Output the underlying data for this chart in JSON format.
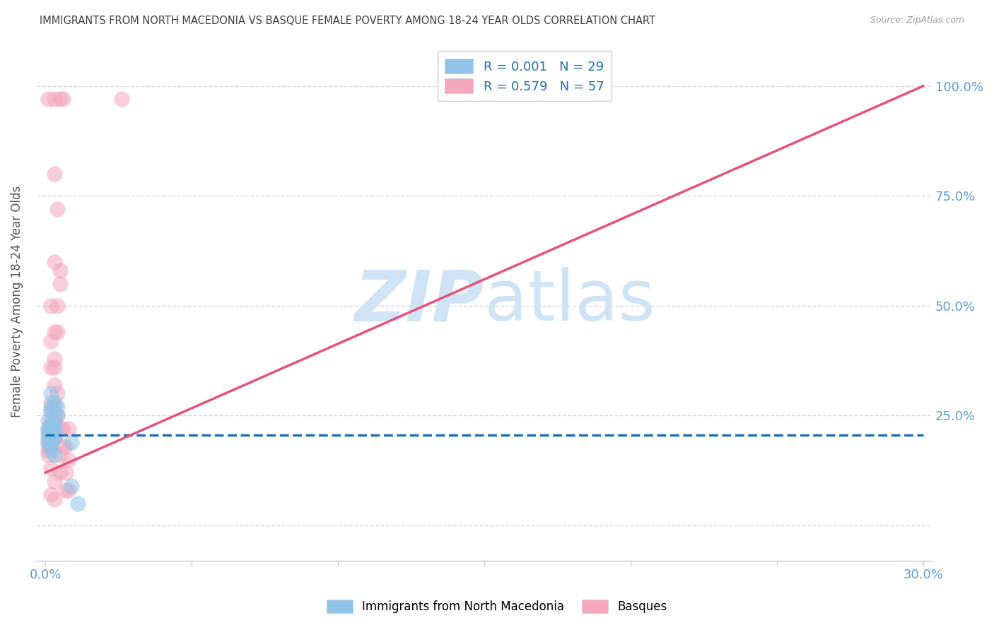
{
  "title": "IMMIGRANTS FROM NORTH MACEDONIA VS BASQUE FEMALE POVERTY AMONG 18-24 YEAR OLDS CORRELATION CHART",
  "source": "Source: ZipAtlas.com",
  "ylabel": "Female Poverty Among 18-24 Year Olds",
  "legend_blue_label": "R = 0.001   N = 29",
  "legend_pink_label": "R = 0.579   N = 57",
  "legend_bottom_blue": "Immigrants from North Macedonia",
  "legend_bottom_pink": "Basques",
  "blue_color": "#8fc4e8",
  "pink_color": "#f4a7bc",
  "blue_line_color": "#2171b5",
  "pink_line_color": "#e8527a",
  "axis_label_color": "#5b9bd5",
  "title_color": "#404040",
  "watermark_zip": "ZIP",
  "watermark_atlas": "atlas",
  "watermark_color": "#d0e4f5",
  "background_color": "#ffffff",
  "grid_color": "#d8d8d8",
  "xlim": [
    0.0,
    0.3
  ],
  "ylim": [
    -0.08,
    1.1
  ],
  "ytick_values": [
    0.0,
    0.25,
    0.5,
    0.75,
    1.0
  ],
  "ytick_labels": [
    "",
    "25.0%",
    "50.0%",
    "75.0%",
    "100.0%"
  ],
  "blue_scatter": [
    [
      0.002,
      0.26
    ],
    [
      0.003,
      0.28
    ],
    [
      0.002,
      0.3
    ],
    [
      0.002,
      0.27
    ],
    [
      0.001,
      0.24
    ],
    [
      0.002,
      0.22
    ],
    [
      0.003,
      0.24
    ],
    [
      0.002,
      0.23
    ],
    [
      0.004,
      0.25
    ],
    [
      0.003,
      0.22
    ],
    [
      0.004,
      0.27
    ],
    [
      0.002,
      0.21
    ],
    [
      0.003,
      0.2
    ],
    [
      0.002,
      0.2
    ],
    [
      0.002,
      0.19
    ],
    [
      0.003,
      0.2
    ],
    [
      0.002,
      0.18
    ],
    [
      0.002,
      0.21
    ],
    [
      0.003,
      0.22
    ],
    [
      0.002,
      0.2
    ],
    [
      0.001,
      0.22
    ],
    [
      0.001,
      0.21
    ],
    [
      0.001,
      0.19
    ],
    [
      0.001,
      0.2
    ],
    [
      0.002,
      0.17
    ],
    [
      0.003,
      0.16
    ],
    [
      0.009,
      0.19
    ],
    [
      0.011,
      0.05
    ],
    [
      0.009,
      0.09
    ]
  ],
  "pink_scatter": [
    [
      0.001,
      0.97
    ],
    [
      0.003,
      0.97
    ],
    [
      0.005,
      0.97
    ],
    [
      0.006,
      0.97
    ],
    [
      0.026,
      0.97
    ],
    [
      0.003,
      0.8
    ],
    [
      0.004,
      0.72
    ],
    [
      0.003,
      0.6
    ],
    [
      0.005,
      0.58
    ],
    [
      0.005,
      0.55
    ],
    [
      0.002,
      0.5
    ],
    [
      0.004,
      0.5
    ],
    [
      0.003,
      0.44
    ],
    [
      0.004,
      0.44
    ],
    [
      0.002,
      0.42
    ],
    [
      0.003,
      0.38
    ],
    [
      0.002,
      0.36
    ],
    [
      0.003,
      0.36
    ],
    [
      0.003,
      0.32
    ],
    [
      0.004,
      0.3
    ],
    [
      0.002,
      0.28
    ],
    [
      0.003,
      0.27
    ],
    [
      0.002,
      0.26
    ],
    [
      0.003,
      0.25
    ],
    [
      0.002,
      0.24
    ],
    [
      0.003,
      0.23
    ],
    [
      0.002,
      0.22
    ],
    [
      0.002,
      0.21
    ],
    [
      0.002,
      0.2
    ],
    [
      0.003,
      0.2
    ],
    [
      0.002,
      0.19
    ],
    [
      0.002,
      0.18
    ],
    [
      0.001,
      0.22
    ],
    [
      0.002,
      0.22
    ],
    [
      0.001,
      0.2
    ],
    [
      0.002,
      0.2
    ],
    [
      0.001,
      0.19
    ],
    [
      0.002,
      0.19
    ],
    [
      0.001,
      0.18
    ],
    [
      0.001,
      0.17
    ],
    [
      0.001,
      0.16
    ],
    [
      0.004,
      0.25
    ],
    [
      0.005,
      0.22
    ],
    [
      0.006,
      0.22
    ],
    [
      0.007,
      0.18
    ],
    [
      0.008,
      0.15
    ],
    [
      0.002,
      0.13
    ],
    [
      0.003,
      0.1
    ],
    [
      0.002,
      0.07
    ],
    [
      0.003,
      0.06
    ],
    [
      0.005,
      0.12
    ],
    [
      0.007,
      0.12
    ],
    [
      0.007,
      0.08
    ],
    [
      0.008,
      0.08
    ],
    [
      0.005,
      0.16
    ],
    [
      0.006,
      0.18
    ],
    [
      0.008,
      0.22
    ]
  ],
  "blue_line_x": [
    0.0,
    0.3
  ],
  "blue_line_y": [
    0.205,
    0.205
  ],
  "pink_line_x": [
    0.0,
    0.3
  ],
  "pink_line_y": [
    0.12,
    1.0
  ]
}
